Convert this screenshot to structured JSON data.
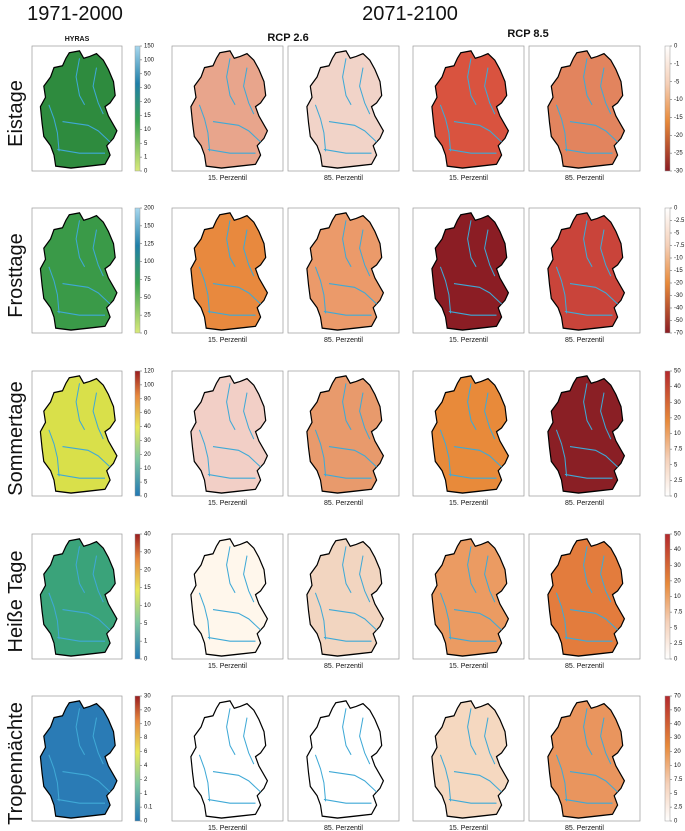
{
  "header": {
    "baseline": "1971-2000",
    "future": "2071-2100",
    "hyras": "HYRAS",
    "rcp26": "RCP 2.6",
    "rcp85": "RCP 8.5"
  },
  "rows": [
    {
      "label": "Eistage",
      "hyras_ticks": [
        "150",
        "100",
        "50",
        "30",
        "20",
        "15",
        "10",
        "5",
        "1",
        "0"
      ],
      "change_ticks": [
        "0",
        "-1",
        "-5",
        "-10",
        "-15",
        "-20",
        "-25",
        "-30"
      ],
      "captions": [
        "15. Perzentil",
        "85. Perzentil",
        "15. Perzentil",
        "85. Perzentil"
      ]
    },
    {
      "label": "Frosttage",
      "hyras_ticks": [
        "200",
        "150",
        "125",
        "100",
        "75",
        "50",
        "25",
        "0"
      ],
      "change_ticks": [
        "0",
        "-2.5",
        "-5",
        "-7.5",
        "-10",
        "-15",
        "-20",
        "-30",
        "-40",
        "-50",
        "-70"
      ],
      "captions": [
        "15. Perzentil",
        "85. Perzentil",
        "15. Perzentil",
        "85. Perzentil"
      ]
    },
    {
      "label": "Sommertage",
      "hyras_ticks": [
        "120",
        "100",
        "80",
        "60",
        "40",
        "30",
        "20",
        "10",
        "5",
        "0"
      ],
      "change_ticks": [
        "50",
        "40",
        "30",
        "20",
        "10",
        "7.5",
        "5",
        "2.5",
        "0"
      ],
      "captions": [
        "15. Perzentil",
        "85. Perzentil",
        "15. Perzentil",
        "85. Perzentil"
      ]
    },
    {
      "label": "Heiße Tage",
      "hyras_ticks": [
        "40",
        "30",
        "20",
        "15",
        "10",
        "5",
        "1",
        "0"
      ],
      "change_ticks": [
        "50",
        "40",
        "30",
        "20",
        "10",
        "7.5",
        "5",
        "2.5",
        "0"
      ],
      "captions": [
        "15. Perzentil",
        "85. Perzentil",
        "15. Perzentil",
        "85. Perzentil"
      ]
    },
    {
      "label": "Tropennächte",
      "hyras_ticks": [
        "30",
        "20",
        "10",
        "8",
        "6",
        "4",
        "2",
        "1",
        "0.1",
        "0"
      ],
      "change_ticks": [
        "70",
        "50",
        "40",
        "30",
        "20",
        "10",
        "7.5",
        "5",
        "2.5",
        "0"
      ],
      "captions": [
        "15. Perzentil",
        "85. Perzentil",
        "15. Perzentil",
        "85. Perzentil"
      ]
    }
  ]
}
